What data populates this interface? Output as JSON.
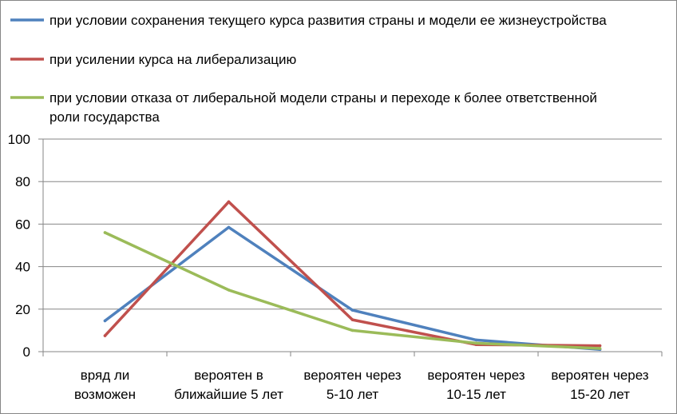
{
  "chart_data": {
    "type": "line",
    "categories": [
      [
        "вряд ли",
        "возможен"
      ],
      [
        "вероятен в",
        "ближайшие 5 лет"
      ],
      [
        "вероятен через",
        "5-10 лет"
      ],
      [
        "вероятен через",
        "10-15 лет"
      ],
      [
        "вероятен через",
        "15-20 лет"
      ]
    ],
    "series": [
      {
        "name": [
          "при условии сохранения текущего курса развития страны и модели ее жизнеустройства"
        ],
        "color": "#4f81bd",
        "values": [
          14.5,
          58.5,
          19.5,
          5.5,
          1
        ]
      },
      {
        "name": [
          "при усилении курса на либерализацию"
        ],
        "color": "#c0504d",
        "values": [
          7.5,
          70.5,
          15,
          3.3,
          2.8
        ]
      },
      {
        "name": [
          "при условии отказа от либеральной модели страны и переходе к более ответственной",
          "роли государства"
        ],
        "color": "#9bbb59",
        "values": [
          56,
          29,
          10,
          4,
          1.5
        ]
      }
    ],
    "ylim": [
      0,
      100
    ],
    "yticks": [
      "0",
      "20",
      "40",
      "60",
      "80",
      "100"
    ],
    "grid": true,
    "legend_position": "top"
  }
}
